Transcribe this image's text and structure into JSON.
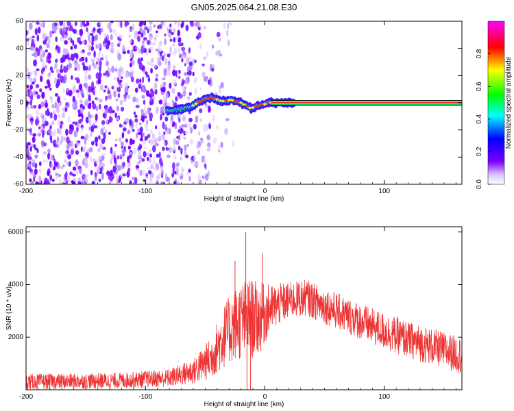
{
  "title": "GN05.2025.064.21.08.E30",
  "chart_data": [
    {
      "type": "heatmap",
      "xlabel": "Height of straight line (km)",
      "ylabel": "Frequency (Hz)",
      "xlim": [
        -200,
        165
      ],
      "ylim": [
        -60,
        60
      ],
      "xticks": [
        -200,
        -100,
        0,
        100
      ],
      "yticks": [
        60,
        40,
        20,
        0,
        -20,
        -40,
        -60
      ],
      "colorbar": {
        "label": "Normalized spectral amplitude",
        "range": [
          0.0,
          1.0
        ],
        "ticks": [
          "0.0",
          "0.2",
          "0.4",
          "0.6",
          "0.8"
        ],
        "colors": [
          "#ffffff",
          "#7a00ff",
          "#0000ff",
          "#00ffff",
          "#00ff00",
          "#ffff00",
          "#ff0000",
          "#ff00ff"
        ]
      },
      "noise_region_x": [
        -200,
        -45
      ],
      "main_trace": [
        {
          "x": -82,
          "y": -6
        },
        {
          "x": -72,
          "y": -5
        },
        {
          "x": -62,
          "y": -3
        },
        {
          "x": -52,
          "y": 2
        },
        {
          "x": -44,
          "y": 4
        },
        {
          "x": -36,
          "y": 1
        },
        {
          "x": -28,
          "y": 2
        },
        {
          "x": -20,
          "y": 0
        },
        {
          "x": -12,
          "y": -4
        },
        {
          "x": -5,
          "y": -2
        },
        {
          "x": 5,
          "y": 0
        },
        {
          "x": 20,
          "y": 0
        },
        {
          "x": 60,
          "y": 0
        },
        {
          "x": 100,
          "y": 0
        },
        {
          "x": 165,
          "y": 0
        }
      ]
    },
    {
      "type": "line",
      "xlabel": "Height of straight line (km)",
      "ylabel": "SNR (10 * v/v)",
      "xlim": [
        -200,
        165
      ],
      "ylim": [
        0,
        6200
      ],
      "xticks": [
        -200,
        -100,
        0,
        100
      ],
      "yticks": [
        2000,
        4000,
        6000
      ],
      "color": "#ee3333",
      "envelope": [
        {
          "x": -200,
          "base": 300,
          "amp": 300
        },
        {
          "x": -120,
          "base": 350,
          "amp": 300
        },
        {
          "x": -80,
          "base": 450,
          "amp": 350
        },
        {
          "x": -60,
          "base": 700,
          "amp": 500
        },
        {
          "x": -45,
          "base": 1200,
          "amp": 800
        },
        {
          "x": -35,
          "base": 2000,
          "amp": 1200
        },
        {
          "x": -25,
          "base": 2500,
          "amp": 1400
        },
        {
          "x": -15,
          "base": 2700,
          "amp": 1600
        },
        {
          "x": -5,
          "base": 2700,
          "amp": 1400
        },
        {
          "x": 5,
          "base": 3100,
          "amp": 900
        },
        {
          "x": 20,
          "base": 3400,
          "amp": 700
        },
        {
          "x": 35,
          "base": 3500,
          "amp": 700
        },
        {
          "x": 60,
          "base": 3000,
          "amp": 700
        },
        {
          "x": 90,
          "base": 2400,
          "amp": 700
        },
        {
          "x": 120,
          "base": 1900,
          "amp": 700
        },
        {
          "x": 165,
          "base": 1300,
          "amp": 700
        }
      ],
      "spikes": [
        {
          "x": -25,
          "y": 4900
        },
        {
          "x": -16,
          "y": 6000
        },
        {
          "x": -2,
          "y": 5200
        },
        {
          "x": -15,
          "y": 0
        },
        {
          "x": -12,
          "y": 0
        }
      ]
    }
  ]
}
